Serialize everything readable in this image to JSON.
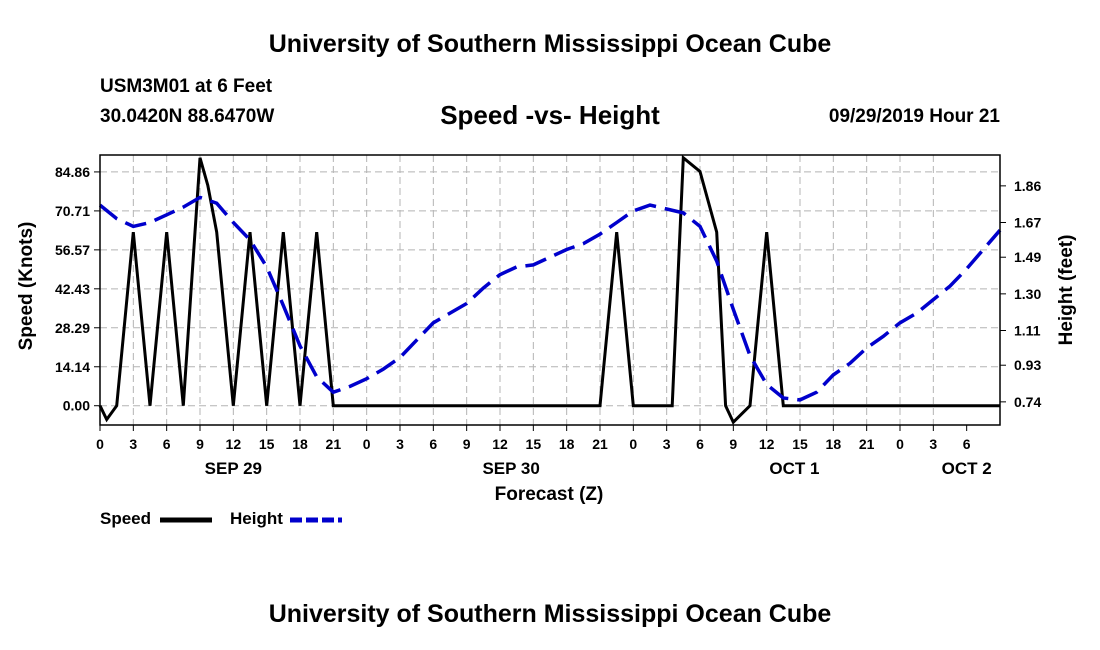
{
  "header": {
    "title": "University of Southern Mississippi Ocean Cube",
    "station": "USM3M01 at 6 Feet",
    "coords": "30.0420N 88.6470W",
    "chart_title": "Speed -vs- Height",
    "datetime": "09/29/2019 Hour 21"
  },
  "footer": {
    "title": "University of Southern Mississippi Ocean Cube"
  },
  "legend": {
    "speed": "Speed",
    "height": "Height"
  },
  "colors": {
    "speed": "#000000",
    "height": "#0000cc",
    "grid": "#b4b4b4"
  },
  "chart_data": {
    "type": "line",
    "title": "Speed -vs- Height",
    "xlabel": "Forecast (Z)",
    "ylabel": "Speed (Knots)",
    "y2label": "Height (feet)",
    "xlim": [
      0,
      81
    ],
    "ylim": [
      -7,
      91
    ],
    "y2lim": [
      0.62,
      2.02
    ],
    "yticks": [
      "0.00",
      "14.14",
      "28.29",
      "42.43",
      "56.57",
      "70.71",
      "84.86"
    ],
    "y2ticks": [
      "0.74",
      "0.93",
      "1.11",
      "1.30",
      "1.49",
      "1.67",
      "1.86"
    ],
    "xticks": [
      "0",
      "3",
      "6",
      "9",
      "12",
      "15",
      "18",
      "21",
      "0",
      "3",
      "6",
      "9",
      "12",
      "15",
      "18",
      "21",
      "0",
      "3",
      "6",
      "9",
      "12",
      "15",
      "18",
      "21",
      "0",
      "3",
      "6"
    ],
    "day_labels": [
      {
        "label": "SEP 29",
        "hour": 12
      },
      {
        "label": "SEP 30",
        "hour": 37
      },
      {
        "label": "OCT 1",
        "hour": 62.5
      },
      {
        "label": "OCT 2",
        "hour": 78
      }
    ],
    "series": [
      {
        "name": "Speed",
        "axis": "left",
        "style": "solid",
        "x": [
          0,
          0.6,
          1.5,
          3,
          4.5,
          6,
          7.5,
          9,
          9.7,
          10.5,
          12,
          13.5,
          15,
          16.5,
          18,
          19.5,
          21,
          24,
          30,
          36,
          42,
          44,
          45,
          46.5,
          48,
          49.5,
          51,
          51.5,
          52.5,
          54,
          55.5,
          56.3,
          57,
          58.5,
          60,
          61.5,
          63,
          67.5,
          72,
          75,
          78,
          81
        ],
        "values": [
          0,
          -5,
          0,
          63,
          0,
          63,
          0,
          90,
          80,
          63,
          0,
          63,
          0,
          63,
          0,
          63,
          0,
          0,
          0,
          0,
          0,
          0,
          0,
          63,
          0,
          0,
          0,
          0,
          90,
          85,
          63,
          0,
          -6,
          0,
          63,
          0,
          0,
          0,
          0,
          0,
          0,
          0
        ]
      },
      {
        "name": "Height",
        "axis": "right",
        "style": "dashed",
        "x": [
          0,
          1.5,
          3,
          4.5,
          6,
          7.5,
          9,
          10.5,
          12,
          13.5,
          15,
          16.5,
          18,
          19.5,
          21,
          22.5,
          24,
          25.5,
          27,
          28.5,
          30,
          31.5,
          33,
          34.5,
          36,
          37.5,
          39,
          40.5,
          42,
          43.5,
          45,
          46.5,
          48,
          49.5,
          51,
          52.5,
          54,
          55.5,
          57,
          58.5,
          60,
          61.5,
          63,
          64.5,
          66,
          67.5,
          69,
          70.5,
          72,
          73.5,
          75,
          76.5,
          78,
          79.5,
          81
        ],
        "values": [
          1.76,
          1.69,
          1.65,
          1.67,
          1.71,
          1.75,
          1.8,
          1.77,
          1.67,
          1.58,
          1.44,
          1.24,
          1.03,
          0.87,
          0.79,
          0.82,
          0.86,
          0.91,
          0.97,
          1.06,
          1.15,
          1.2,
          1.25,
          1.33,
          1.4,
          1.44,
          1.45,
          1.49,
          1.53,
          1.56,
          1.61,
          1.67,
          1.73,
          1.76,
          1.74,
          1.72,
          1.65,
          1.47,
          1.22,
          0.98,
          0.83,
          0.76,
          0.75,
          0.79,
          0.88,
          0.94,
          1.02,
          1.08,
          1.15,
          1.2,
          1.27,
          1.34,
          1.43,
          1.53,
          1.63
        ]
      }
    ]
  }
}
